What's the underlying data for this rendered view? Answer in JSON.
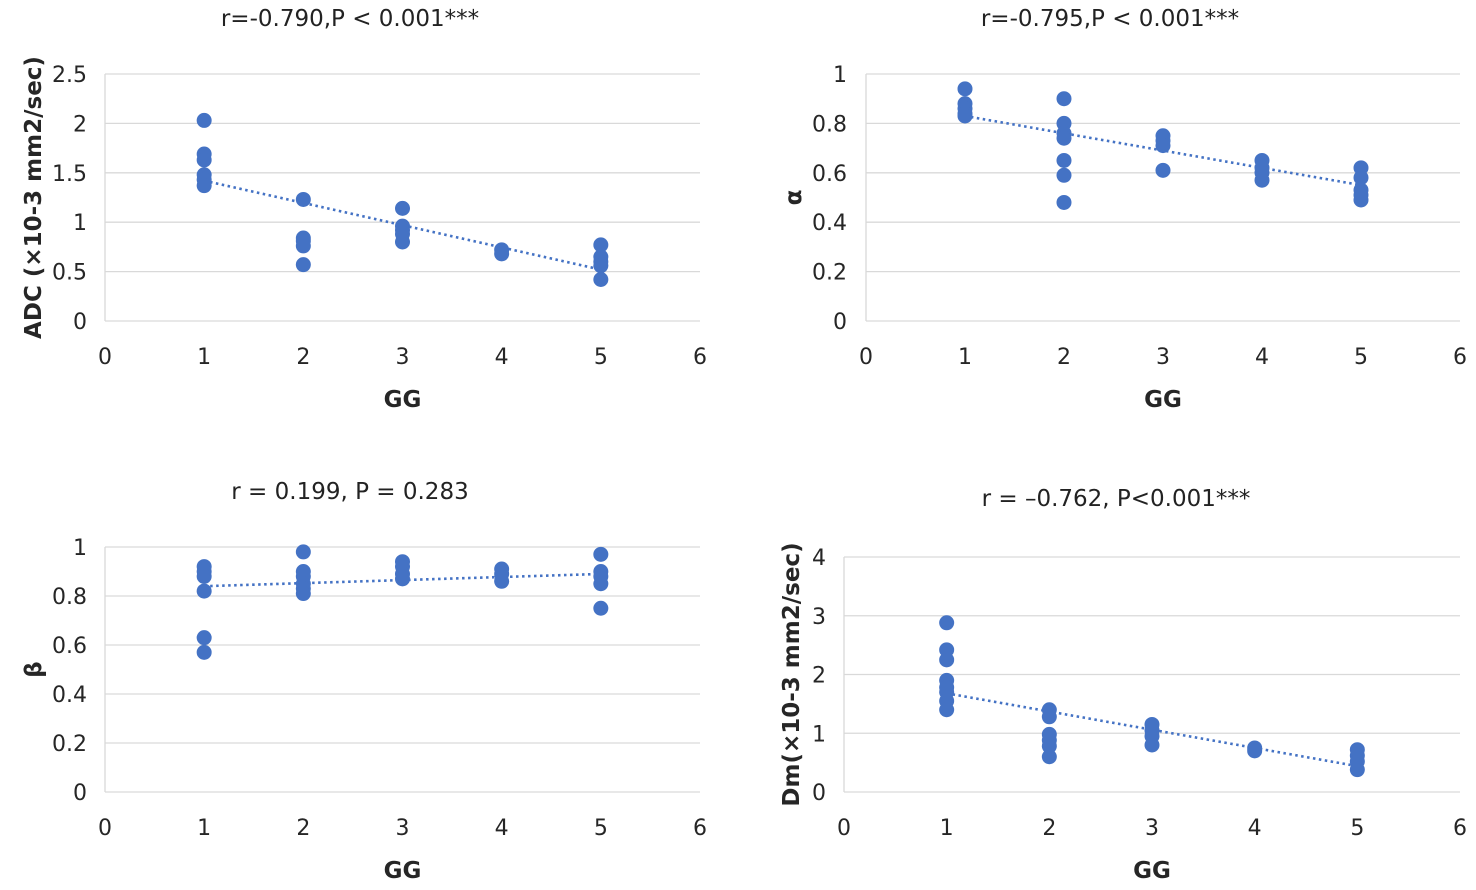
{
  "chart_data": [
    {
      "type": "scatter",
      "title": "r=-0.790,P < 0.001***",
      "xlabel": "GG",
      "ylabel": "ADC (×10-3 mm2/sec)",
      "xlim": [
        0,
        6
      ],
      "ylim": [
        0,
        2.5
      ],
      "xticks": [
        "0",
        "1",
        "2",
        "3",
        "4",
        "5",
        "6"
      ],
      "yticks": [
        "0",
        "0.5",
        "1",
        "1.5",
        "2",
        "2.5"
      ],
      "trendline": {
        "style": "dotted",
        "x": [
          1,
          5
        ],
        "y": [
          1.42,
          0.52
        ]
      },
      "points": [
        {
          "x": 1,
          "y": 2.03
        },
        {
          "x": 1,
          "y": 1.69
        },
        {
          "x": 1,
          "y": 1.63
        },
        {
          "x": 1,
          "y": 1.48
        },
        {
          "x": 1,
          "y": 1.43
        },
        {
          "x": 1,
          "y": 1.37
        },
        {
          "x": 2,
          "y": 1.23
        },
        {
          "x": 2,
          "y": 0.84
        },
        {
          "x": 2,
          "y": 0.81
        },
        {
          "x": 2,
          "y": 0.76
        },
        {
          "x": 2,
          "y": 0.57
        },
        {
          "x": 3,
          "y": 1.14
        },
        {
          "x": 3,
          "y": 0.96
        },
        {
          "x": 3,
          "y": 0.92
        },
        {
          "x": 3,
          "y": 0.88
        },
        {
          "x": 3,
          "y": 0.8
        },
        {
          "x": 4,
          "y": 0.72
        },
        {
          "x": 4,
          "y": 0.68
        },
        {
          "x": 5,
          "y": 0.77
        },
        {
          "x": 5,
          "y": 0.65
        },
        {
          "x": 5,
          "y": 0.6
        },
        {
          "x": 5,
          "y": 0.56
        },
        {
          "x": 5,
          "y": 0.42
        }
      ]
    },
    {
      "type": "scatter",
      "title": "r=-0.795,P < 0.001***",
      "xlabel": "GG",
      "ylabel": "α",
      "xlim": [
        0,
        6
      ],
      "ylim": [
        0,
        1
      ],
      "xticks": [
        "0",
        "1",
        "2",
        "3",
        "4",
        "5",
        "6"
      ],
      "yticks": [
        "0",
        "0.2",
        "0.4",
        "0.6",
        "0.8",
        "1"
      ],
      "trendline": {
        "style": "dotted",
        "x": [
          1,
          5
        ],
        "y": [
          0.83,
          0.55
        ]
      },
      "points": [
        {
          "x": 1,
          "y": 0.94
        },
        {
          "x": 1,
          "y": 0.88
        },
        {
          "x": 1,
          "y": 0.86
        },
        {
          "x": 1,
          "y": 0.84
        },
        {
          "x": 1,
          "y": 0.83
        },
        {
          "x": 2,
          "y": 0.9
        },
        {
          "x": 2,
          "y": 0.8
        },
        {
          "x": 2,
          "y": 0.76
        },
        {
          "x": 2,
          "y": 0.74
        },
        {
          "x": 2,
          "y": 0.65
        },
        {
          "x": 2,
          "y": 0.59
        },
        {
          "x": 2,
          "y": 0.48
        },
        {
          "x": 3,
          "y": 0.75
        },
        {
          "x": 3,
          "y": 0.73
        },
        {
          "x": 3,
          "y": 0.71
        },
        {
          "x": 3,
          "y": 0.61
        },
        {
          "x": 4,
          "y": 0.65
        },
        {
          "x": 4,
          "y": 0.62
        },
        {
          "x": 4,
          "y": 0.6
        },
        {
          "x": 4,
          "y": 0.57
        },
        {
          "x": 5,
          "y": 0.62
        },
        {
          "x": 5,
          "y": 0.58
        },
        {
          "x": 5,
          "y": 0.53
        },
        {
          "x": 5,
          "y": 0.51
        },
        {
          "x": 5,
          "y": 0.49
        }
      ]
    },
    {
      "type": "scatter",
      "title": "r = 0.199, P = 0.283",
      "xlabel": "GG",
      "ylabel": "β",
      "xlim": [
        0,
        6
      ],
      "ylim": [
        0,
        1
      ],
      "xticks": [
        "0",
        "1",
        "2",
        "3",
        "4",
        "5",
        "6"
      ],
      "yticks": [
        "0",
        "0.2",
        "0.4",
        "0.6",
        "0.8",
        "1"
      ],
      "trendline": {
        "style": "dotted",
        "x": [
          1,
          5
        ],
        "y": [
          0.84,
          0.89
        ]
      },
      "points": [
        {
          "x": 1,
          "y": 0.92
        },
        {
          "x": 1,
          "y": 0.9
        },
        {
          "x": 1,
          "y": 0.88
        },
        {
          "x": 1,
          "y": 0.82
        },
        {
          "x": 1,
          "y": 0.63
        },
        {
          "x": 1,
          "y": 0.57
        },
        {
          "x": 2,
          "y": 0.98
        },
        {
          "x": 2,
          "y": 0.9
        },
        {
          "x": 2,
          "y": 0.88
        },
        {
          "x": 2,
          "y": 0.85
        },
        {
          "x": 2,
          "y": 0.83
        },
        {
          "x": 2,
          "y": 0.81
        },
        {
          "x": 3,
          "y": 0.94
        },
        {
          "x": 3,
          "y": 0.92
        },
        {
          "x": 3,
          "y": 0.89
        },
        {
          "x": 3,
          "y": 0.87
        },
        {
          "x": 4,
          "y": 0.91
        },
        {
          "x": 4,
          "y": 0.89
        },
        {
          "x": 4,
          "y": 0.86
        },
        {
          "x": 5,
          "y": 0.97
        },
        {
          "x": 5,
          "y": 0.9
        },
        {
          "x": 5,
          "y": 0.88
        },
        {
          "x": 5,
          "y": 0.85
        },
        {
          "x": 5,
          "y": 0.75
        }
      ]
    },
    {
      "type": "scatter",
      "title": "r = –0.762, P<0.001***",
      "xlabel": "GG",
      "ylabel": "Dm(×10-3 mm2/sec)",
      "xlim": [
        0,
        6
      ],
      "ylim": [
        0,
        4
      ],
      "xticks": [
        "0",
        "1",
        "2",
        "3",
        "4",
        "5",
        "6"
      ],
      "yticks": [
        "0",
        "1",
        "2",
        "3",
        "4"
      ],
      "trendline": {
        "style": "dotted",
        "x": [
          1,
          5
        ],
        "y": [
          1.68,
          0.44
        ]
      },
      "points": [
        {
          "x": 1,
          "y": 2.88
        },
        {
          "x": 1,
          "y": 2.42
        },
        {
          "x": 1,
          "y": 2.25
        },
        {
          "x": 1,
          "y": 1.9
        },
        {
          "x": 1,
          "y": 1.78
        },
        {
          "x": 1,
          "y": 1.7
        },
        {
          "x": 1,
          "y": 1.55
        },
        {
          "x": 1,
          "y": 1.4
        },
        {
          "x": 2,
          "y": 1.4
        },
        {
          "x": 2,
          "y": 1.28
        },
        {
          "x": 2,
          "y": 0.98
        },
        {
          "x": 2,
          "y": 0.88
        },
        {
          "x": 2,
          "y": 0.78
        },
        {
          "x": 2,
          "y": 0.6
        },
        {
          "x": 3,
          "y": 1.15
        },
        {
          "x": 3,
          "y": 1.05
        },
        {
          "x": 3,
          "y": 0.95
        },
        {
          "x": 3,
          "y": 0.8
        },
        {
          "x": 4,
          "y": 0.75
        },
        {
          "x": 4,
          "y": 0.7
        },
        {
          "x": 5,
          "y": 0.72
        },
        {
          "x": 5,
          "y": 0.62
        },
        {
          "x": 5,
          "y": 0.52
        },
        {
          "x": 5,
          "y": 0.38
        }
      ]
    }
  ]
}
